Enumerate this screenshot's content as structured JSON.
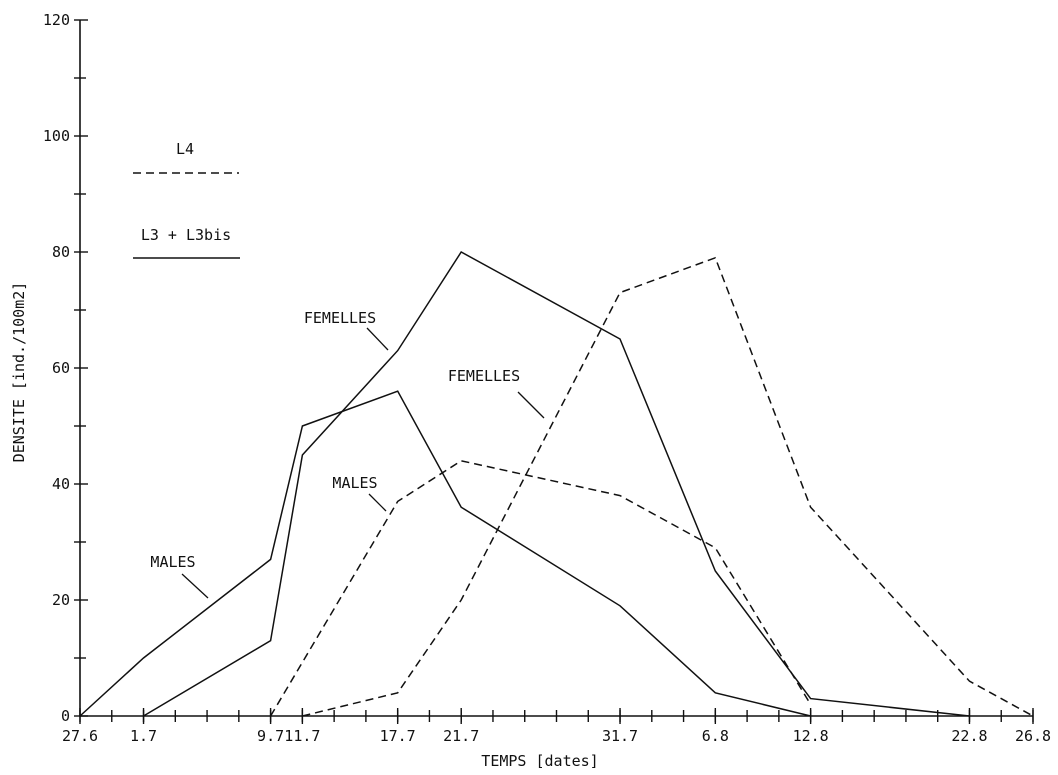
{
  "chart_data": {
    "type": "line",
    "xlabel": "TEMPS [dates]",
    "ylabel": "DENSITE [ind./100m2]",
    "x_categories": [
      "27.6",
      "1.7",
      "9.7",
      "11.7",
      "17.7",
      "21.7",
      "31.7",
      "6.8",
      "12.8",
      "22.8",
      "26.8"
    ],
    "x_day_index": [
      0,
      4,
      12,
      14,
      20,
      24,
      34,
      40,
      46,
      56,
      60
    ],
    "ylim": [
      0,
      120
    ],
    "yticks": [
      0,
      20,
      40,
      60,
      80,
      100,
      120
    ],
    "legend": [
      {
        "label": "L4",
        "style": "dashed"
      },
      {
        "label": "L3 + L3bis",
        "style": "solid"
      }
    ],
    "series": [
      {
        "group": "L3 + L3bis",
        "sex": "MALES",
        "style": "solid",
        "points": [
          [
            "27.6",
            0
          ],
          [
            "1.7",
            10
          ],
          [
            "9.7",
            27
          ],
          [
            "11.7",
            50
          ],
          [
            "17.7",
            56
          ],
          [
            "21.7",
            36
          ],
          [
            "31.7",
            19
          ],
          [
            "6.8",
            4
          ],
          [
            "12.8",
            0
          ]
        ]
      },
      {
        "group": "L3 + L3bis",
        "sex": "FEMELLES",
        "style": "solid",
        "points": [
          [
            "1.7",
            0
          ],
          [
            "9.7",
            13
          ],
          [
            "11.7",
            45
          ],
          [
            "17.7",
            63
          ],
          [
            "21.7",
            80
          ],
          [
            "31.7",
            65
          ],
          [
            "6.8",
            25
          ],
          [
            "12.8",
            3
          ],
          [
            "22.8",
            0
          ]
        ]
      },
      {
        "group": "L4",
        "sex": "MALES",
        "style": "dashed",
        "points": [
          [
            "9.7",
            0
          ],
          [
            "17.7",
            37
          ],
          [
            "21.7",
            44
          ],
          [
            "31.7",
            38
          ],
          [
            "6.8",
            29
          ],
          [
            "12.8",
            2
          ]
        ]
      },
      {
        "group": "L4",
        "sex": "FEMELLES",
        "style": "dashed",
        "points": [
          [
            "11.7",
            0
          ],
          [
            "17.7",
            4
          ],
          [
            "21.7",
            20
          ],
          [
            "31.7",
            73
          ],
          [
            "6.8",
            79
          ],
          [
            "12.8",
            36
          ],
          [
            "22.8",
            6
          ],
          [
            "26.8",
            0
          ]
        ]
      }
    ],
    "annotations": [
      "MALES",
      "FEMELLES",
      "MALES",
      "FEMELLES"
    ]
  }
}
